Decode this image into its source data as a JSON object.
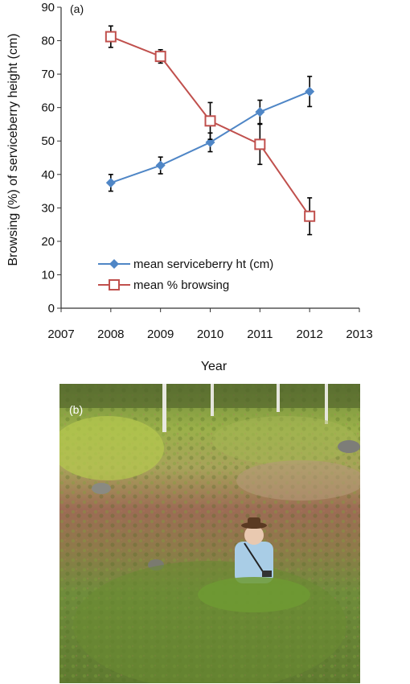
{
  "chart_data": {
    "type": "line",
    "panel_label": "(a)",
    "xlabel": "Year",
    "ylabel": "Browsing (%) of serviceberry height (cm)",
    "xlim": [
      2007,
      2013
    ],
    "ylim": [
      0,
      90
    ],
    "x_ticks": [
      2007,
      2008,
      2009,
      2010,
      2011,
      2012,
      2013
    ],
    "y_ticks": [
      0,
      10,
      20,
      30,
      40,
      50,
      60,
      70,
      80,
      90
    ],
    "grid": false,
    "legend_position": "lower-left",
    "series": [
      {
        "name": "mean serviceberry ht (cm)",
        "color": "#4f86c6",
        "marker": "diamond",
        "x": [
          2008,
          2009,
          2010,
          2011,
          2012
        ],
        "y": [
          37.5,
          42.7,
          49.6,
          58.7,
          64.8
        ],
        "err": [
          2.5,
          2.5,
          2.8,
          3.5,
          4.5
        ]
      },
      {
        "name": "mean % browsing",
        "color": "#c0504d",
        "marker": "square-open",
        "x": [
          2008,
          2009,
          2010,
          2011,
          2012
        ],
        "y": [
          81.2,
          75.3,
          56.0,
          49.0,
          27.5
        ],
        "err": [
          3.2,
          2.0,
          5.5,
          6.0,
          5.5
        ]
      }
    ]
  },
  "photo": {
    "label": "(b)"
  }
}
